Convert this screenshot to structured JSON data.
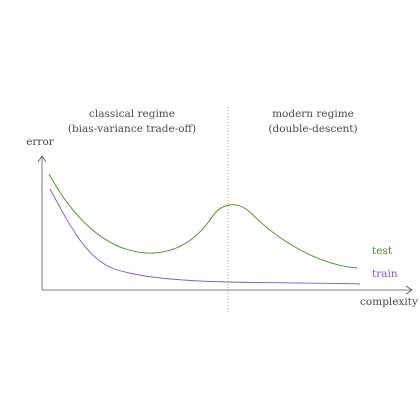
{
  "annotations": {
    "classical_line1": "classical regime",
    "classical_line2": "(bias-variance trade-off)",
    "modern_line1": "modern regime",
    "modern_line2": "(double-descent)"
  },
  "axes": {
    "y_label": "error",
    "x_label": "complexity"
  },
  "legend": {
    "test": "test",
    "train": "train"
  },
  "colors": {
    "axis": "#555555",
    "test": "#4e8a2a",
    "train": "#7a5cc2",
    "threshold": "#9a8aa8",
    "text": "#4a4a4a"
  }
}
